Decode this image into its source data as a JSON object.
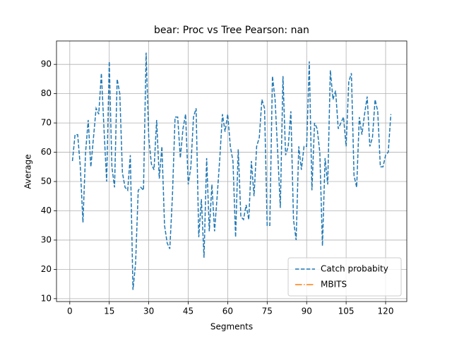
{
  "chart_data": {
    "type": "line",
    "title": "bear: Proc vs Tree Pearson: nan",
    "x_label": "Segments",
    "y_label": "Average",
    "x": [
      1,
      2,
      3,
      4,
      5,
      6,
      7,
      8,
      9,
      10,
      11,
      12,
      13,
      14,
      15,
      16,
      17,
      18,
      19,
      20,
      21,
      22,
      23,
      24,
      25,
      26,
      27,
      28,
      29,
      30,
      31,
      32,
      33,
      34,
      35,
      36,
      37,
      38,
      39,
      40,
      41,
      42,
      43,
      44,
      45,
      46,
      47,
      48,
      49,
      50,
      51,
      52,
      53,
      54,
      55,
      56,
      57,
      58,
      59,
      60,
      61,
      62,
      63,
      64,
      65,
      66,
      67,
      68,
      69,
      70,
      71,
      72,
      73,
      74,
      75,
      76,
      77,
      78,
      79,
      80,
      81,
      82,
      83,
      84,
      85,
      86,
      87,
      88,
      89,
      90,
      91,
      92,
      93,
      94,
      95,
      96,
      97,
      98,
      99,
      100,
      101,
      102,
      103,
      104,
      105,
      106,
      107,
      108,
      109,
      110,
      111,
      112,
      113,
      114,
      115,
      116,
      117,
      118,
      119,
      120,
      121,
      122
    ],
    "series": [
      {
        "name": "Catch probabity",
        "color": "#1f77b4",
        "dash": "dashed",
        "values": [
          57,
          66,
          66,
          55,
          36,
          60,
          71,
          55,
          65,
          75,
          73,
          87,
          68,
          50,
          91,
          55,
          48,
          85,
          80,
          53,
          48,
          47,
          59,
          13,
          22,
          47,
          48,
          47,
          94,
          65,
          56,
          54,
          71,
          51,
          62,
          35,
          29,
          27,
          45,
          72,
          72,
          58,
          68,
          73,
          49,
          55,
          72,
          75,
          31,
          44,
          24,
          58,
          33,
          49,
          33,
          45,
          58,
          73,
          67,
          73,
          62,
          57,
          31,
          61,
          38,
          37,
          42,
          37,
          57,
          45,
          62,
          65,
          78,
          75,
          35,
          35,
          86,
          78,
          60,
          41,
          86,
          59,
          62,
          74,
          37,
          30,
          62,
          54,
          62,
          62,
          91,
          47,
          70,
          68,
          60,
          28,
          58,
          49,
          88,
          78,
          81,
          68,
          70,
          72,
          62,
          84,
          87,
          52,
          48,
          72,
          66,
          73,
          79,
          62,
          65,
          78,
          74,
          55,
          55,
          59,
          60,
          73
        ]
      },
      {
        "name": "MBITS",
        "color": "#ff7f0e",
        "dash": "dashdot",
        "values": [
          null,
          null,
          null,
          null,
          null,
          null,
          null,
          null,
          null,
          null,
          null,
          null,
          null,
          null,
          null,
          null,
          null,
          null,
          null,
          null,
          null,
          null,
          null,
          null,
          null,
          null,
          null,
          null,
          null,
          null,
          null,
          null,
          null,
          null,
          null,
          null,
          null,
          null,
          null,
          null,
          null,
          null,
          null,
          null,
          null,
          null,
          null,
          null,
          null,
          null,
          null,
          null,
          null,
          null,
          null,
          null,
          null,
          null,
          null,
          null,
          null,
          null,
          null,
          null,
          null,
          null,
          null,
          null,
          null,
          null,
          null,
          null,
          null,
          null,
          null,
          null,
          null,
          null,
          null,
          null,
          null,
          null,
          null,
          null,
          null,
          null,
          null,
          null,
          null,
          null,
          null,
          null,
          null,
          null,
          null,
          null,
          null,
          null,
          null,
          null,
          null,
          null,
          null,
          null,
          null,
          null,
          null,
          null,
          null,
          null,
          null,
          null,
          null,
          null,
          null,
          null,
          null,
          null,
          null,
          null,
          null,
          null
        ]
      }
    ],
    "xlim": [
      -5.05,
      128.05
    ],
    "ylim": [
      9,
      98
    ],
    "xticks": [
      0,
      15,
      30,
      45,
      60,
      75,
      90,
      105,
      120
    ],
    "yticks": [
      10,
      20,
      30,
      40,
      50,
      60,
      70,
      80,
      90
    ],
    "grid": true,
    "legend": "lower right"
  }
}
